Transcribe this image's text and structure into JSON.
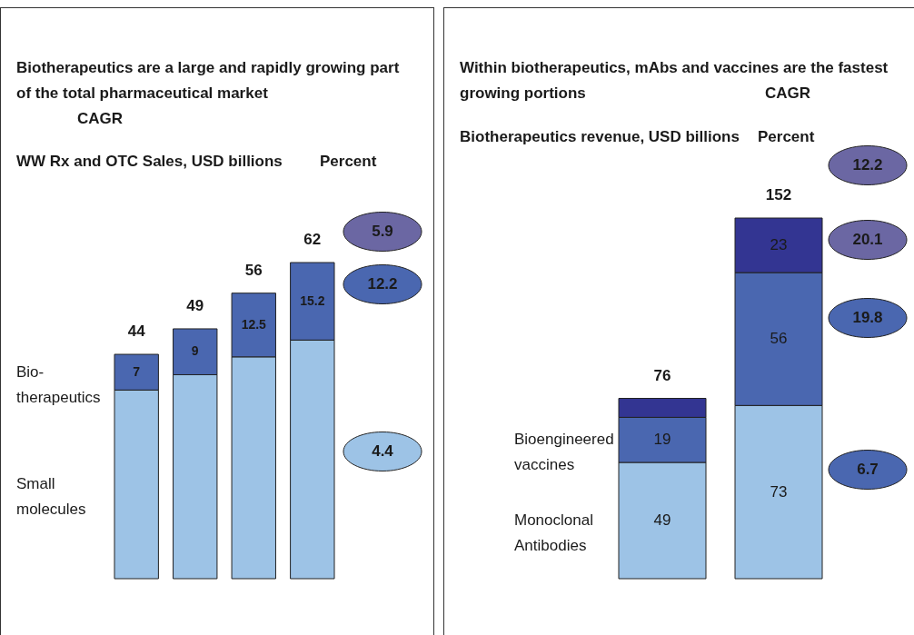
{
  "chart_data": [
    {
      "type": "bar",
      "stacked": true,
      "title": "Biotherapeutics are a large and rapidly growing part of the total pharmaceutical market",
      "ylabel": "WW Rx and OTC Sales, USD billions",
      "categories": [
        null,
        null,
        null,
        null
      ],
      "series": [
        {
          "name": "Small molecules",
          "color": "#9dc3e6",
          "values": [
            37,
            40,
            43.5,
            46.8
          ]
        },
        {
          "name": "Bio-therapeutics",
          "color": "#4a67b0",
          "values": [
            7,
            9,
            12.5,
            15.2
          ],
          "value_labels": [
            "7",
            "9",
            "12.5",
            "15.2"
          ]
        }
      ],
      "totals": [
        "44",
        "49",
        "56",
        "62"
      ],
      "annotations": [
        "CAGR",
        "Percent",
        "5.9",
        "12.2",
        "4.4"
      ]
    },
    {
      "type": "bar",
      "stacked": true,
      "title": "Within biotherapeutics, mAbs and vaccines are the fastest growing portions",
      "ylabel": "Biotherapeutics revenue, USD billions",
      "categories": [
        null,
        null
      ],
      "series": [
        {
          "name": "Monoclonal Antibodies",
          "color": "#9dc3e6",
          "values": [
            49,
            73
          ],
          "value_labels": [
            "49",
            "73"
          ]
        },
        {
          "name": "Bioengineered vaccines",
          "color": "#4a67b0",
          "values": [
            19,
            56
          ],
          "value_labels": [
            "19",
            "56"
          ]
        },
        {
          "color": "#333592",
          "values": [
            8,
            23
          ],
          "value_labels": [
            null,
            "23"
          ]
        }
      ],
      "totals": [
        "76",
        "152"
      ],
      "annotations": [
        "CAGR",
        "Percent",
        "12.2",
        "20.1",
        "19.8",
        "6.7"
      ]
    }
  ]
}
